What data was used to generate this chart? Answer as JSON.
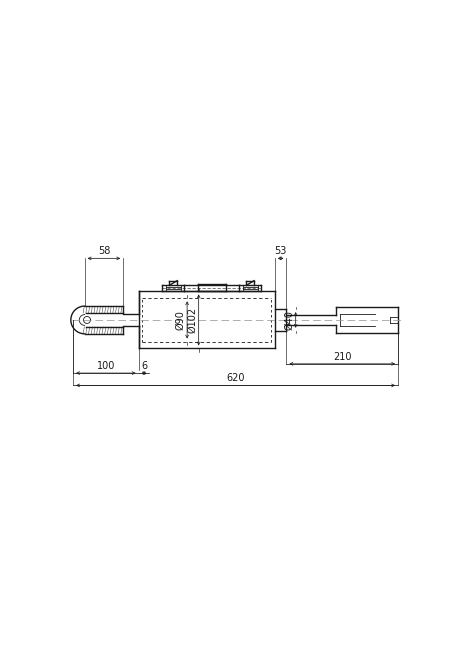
{
  "bg_color": "#ffffff",
  "line_color": "#1a1a1a",
  "dim_color": "#1a1a1a",
  "fig_width": 4.65,
  "fig_height": 6.45,
  "dim_58": "58",
  "dim_100": "100",
  "dim_6": "6",
  "dim_90": "Ø90",
  "dim_102": "Ø102",
  "dim_40": "Ø40",
  "dim_53": "53",
  "dim_210": "210",
  "dim_620": "620",
  "xlim": [
    0,
    465
  ],
  "ylim": [
    0,
    645
  ]
}
